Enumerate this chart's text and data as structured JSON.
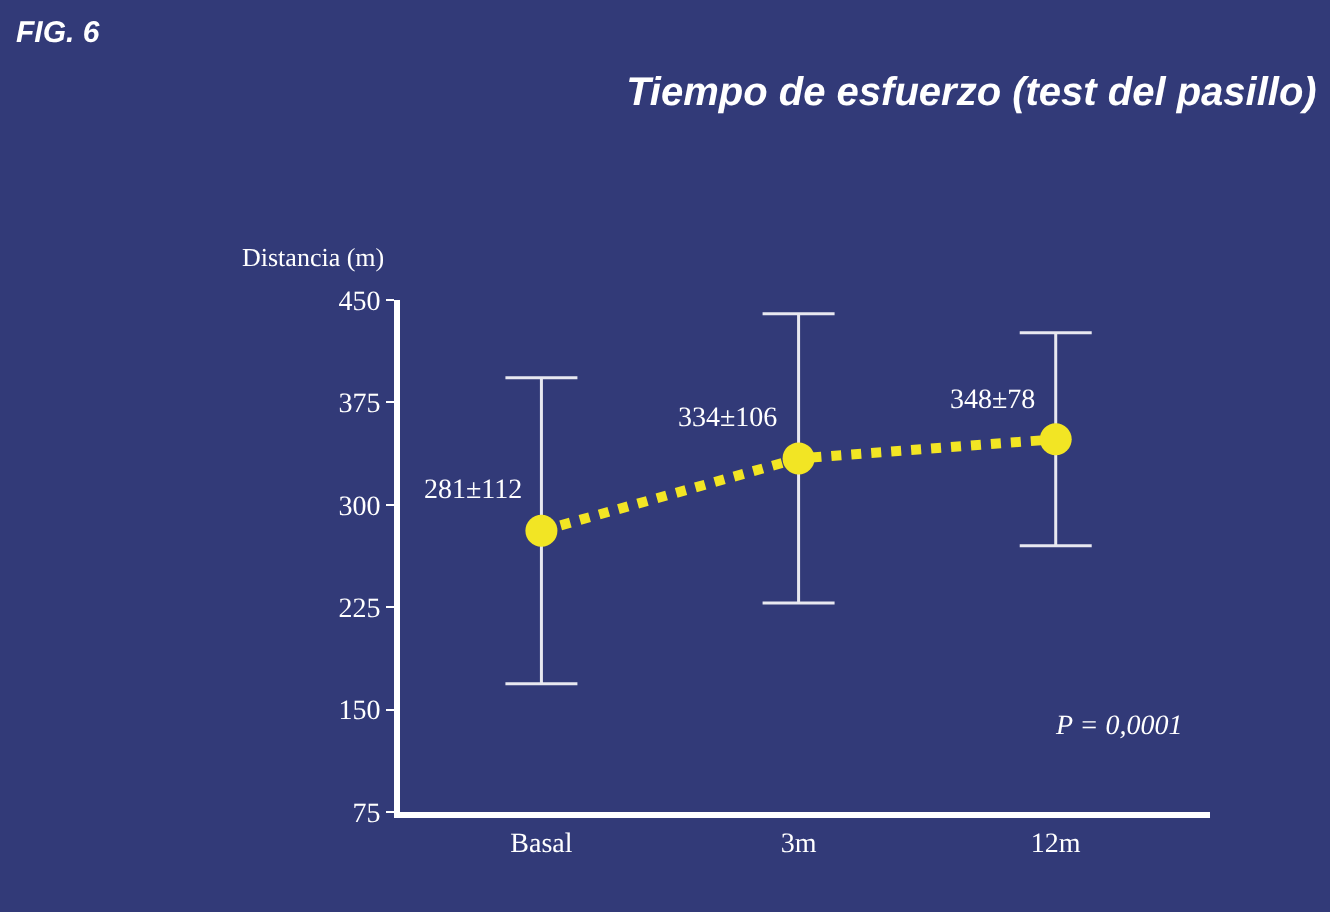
{
  "chart_data": {
    "type": "line",
    "title": "Tiempo de esfuerzo (test del pasillo)",
    "ylabel": "Distancia (m)",
    "categories": [
      "Basal",
      "3m",
      "12m"
    ],
    "series": [
      {
        "color": "#f2e524",
        "values": [
          281,
          334,
          348
        ],
        "errors": [
          112,
          106,
          78
        ],
        "value_labels": [
          "281±112",
          "334±106",
          "348±78"
        ]
      }
    ],
    "ylim": [
      75,
      450
    ],
    "yticks": [
      75,
      150,
      225,
      300,
      375,
      450
    ],
    "marker": "circle",
    "line_style": "dotted",
    "annotations": [
      "FIG. 6",
      "P = 0,0001"
    ]
  }
}
